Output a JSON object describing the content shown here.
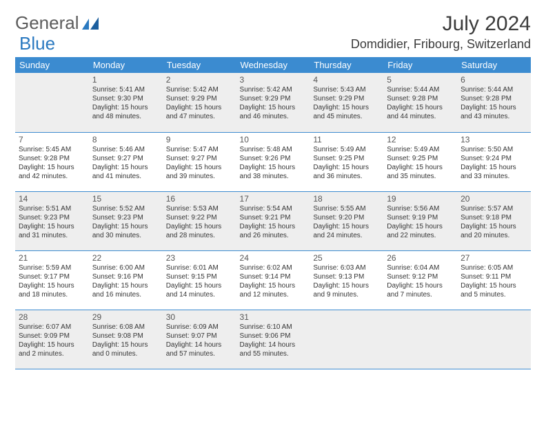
{
  "logo": {
    "word1": "General",
    "word2": "Blue"
  },
  "title": "July 2024",
  "location": "Domdidier, Fribourg, Switzerland",
  "colors": {
    "header_bg": "#3b8bd0",
    "header_text": "#ffffff",
    "body_text": "#353535",
    "alt_row_bg": "#eeeeee",
    "border": "#3b8bd0",
    "logo_gray": "#5c5c5c",
    "logo_blue": "#2a79c0"
  },
  "fonts": {
    "base_pt": 10,
    "daynum_pt": 12,
    "header_pt": 13,
    "title_pt": 30,
    "location_pt": 18
  },
  "day_headers": [
    "Sunday",
    "Monday",
    "Tuesday",
    "Wednesday",
    "Thursday",
    "Friday",
    "Saturday"
  ],
  "weeks": [
    [
      null,
      {
        "n": "1",
        "sr": "5:41 AM",
        "ss": "9:30 PM",
        "dl": "15 hours and 48 minutes."
      },
      {
        "n": "2",
        "sr": "5:42 AM",
        "ss": "9:29 PM",
        "dl": "15 hours and 47 minutes."
      },
      {
        "n": "3",
        "sr": "5:42 AM",
        "ss": "9:29 PM",
        "dl": "15 hours and 46 minutes."
      },
      {
        "n": "4",
        "sr": "5:43 AM",
        "ss": "9:29 PM",
        "dl": "15 hours and 45 minutes."
      },
      {
        "n": "5",
        "sr": "5:44 AM",
        "ss": "9:28 PM",
        "dl": "15 hours and 44 minutes."
      },
      {
        "n": "6",
        "sr": "5:44 AM",
        "ss": "9:28 PM",
        "dl": "15 hours and 43 minutes."
      }
    ],
    [
      {
        "n": "7",
        "sr": "5:45 AM",
        "ss": "9:28 PM",
        "dl": "15 hours and 42 minutes."
      },
      {
        "n": "8",
        "sr": "5:46 AM",
        "ss": "9:27 PM",
        "dl": "15 hours and 41 minutes."
      },
      {
        "n": "9",
        "sr": "5:47 AM",
        "ss": "9:27 PM",
        "dl": "15 hours and 39 minutes."
      },
      {
        "n": "10",
        "sr": "5:48 AM",
        "ss": "9:26 PM",
        "dl": "15 hours and 38 minutes."
      },
      {
        "n": "11",
        "sr": "5:49 AM",
        "ss": "9:25 PM",
        "dl": "15 hours and 36 minutes."
      },
      {
        "n": "12",
        "sr": "5:49 AM",
        "ss": "9:25 PM",
        "dl": "15 hours and 35 minutes."
      },
      {
        "n": "13",
        "sr": "5:50 AM",
        "ss": "9:24 PM",
        "dl": "15 hours and 33 minutes."
      }
    ],
    [
      {
        "n": "14",
        "sr": "5:51 AM",
        "ss": "9:23 PM",
        "dl": "15 hours and 31 minutes."
      },
      {
        "n": "15",
        "sr": "5:52 AM",
        "ss": "9:23 PM",
        "dl": "15 hours and 30 minutes."
      },
      {
        "n": "16",
        "sr": "5:53 AM",
        "ss": "9:22 PM",
        "dl": "15 hours and 28 minutes."
      },
      {
        "n": "17",
        "sr": "5:54 AM",
        "ss": "9:21 PM",
        "dl": "15 hours and 26 minutes."
      },
      {
        "n": "18",
        "sr": "5:55 AM",
        "ss": "9:20 PM",
        "dl": "15 hours and 24 minutes."
      },
      {
        "n": "19",
        "sr": "5:56 AM",
        "ss": "9:19 PM",
        "dl": "15 hours and 22 minutes."
      },
      {
        "n": "20",
        "sr": "5:57 AM",
        "ss": "9:18 PM",
        "dl": "15 hours and 20 minutes."
      }
    ],
    [
      {
        "n": "21",
        "sr": "5:59 AM",
        "ss": "9:17 PM",
        "dl": "15 hours and 18 minutes."
      },
      {
        "n": "22",
        "sr": "6:00 AM",
        "ss": "9:16 PM",
        "dl": "15 hours and 16 minutes."
      },
      {
        "n": "23",
        "sr": "6:01 AM",
        "ss": "9:15 PM",
        "dl": "15 hours and 14 minutes."
      },
      {
        "n": "24",
        "sr": "6:02 AM",
        "ss": "9:14 PM",
        "dl": "15 hours and 12 minutes."
      },
      {
        "n": "25",
        "sr": "6:03 AM",
        "ss": "9:13 PM",
        "dl": "15 hours and 9 minutes."
      },
      {
        "n": "26",
        "sr": "6:04 AM",
        "ss": "9:12 PM",
        "dl": "15 hours and 7 minutes."
      },
      {
        "n": "27",
        "sr": "6:05 AM",
        "ss": "9:11 PM",
        "dl": "15 hours and 5 minutes."
      }
    ],
    [
      {
        "n": "28",
        "sr": "6:07 AM",
        "ss": "9:09 PM",
        "dl": "15 hours and 2 minutes."
      },
      {
        "n": "29",
        "sr": "6:08 AM",
        "ss": "9:08 PM",
        "dl": "15 hours and 0 minutes."
      },
      {
        "n": "30",
        "sr": "6:09 AM",
        "ss": "9:07 PM",
        "dl": "14 hours and 57 minutes."
      },
      {
        "n": "31",
        "sr": "6:10 AM",
        "ss": "9:06 PM",
        "dl": "14 hours and 55 minutes."
      },
      null,
      null,
      null
    ]
  ],
  "labels": {
    "sunrise": "Sunrise:",
    "sunset": "Sunset:",
    "daylight": "Daylight:"
  }
}
